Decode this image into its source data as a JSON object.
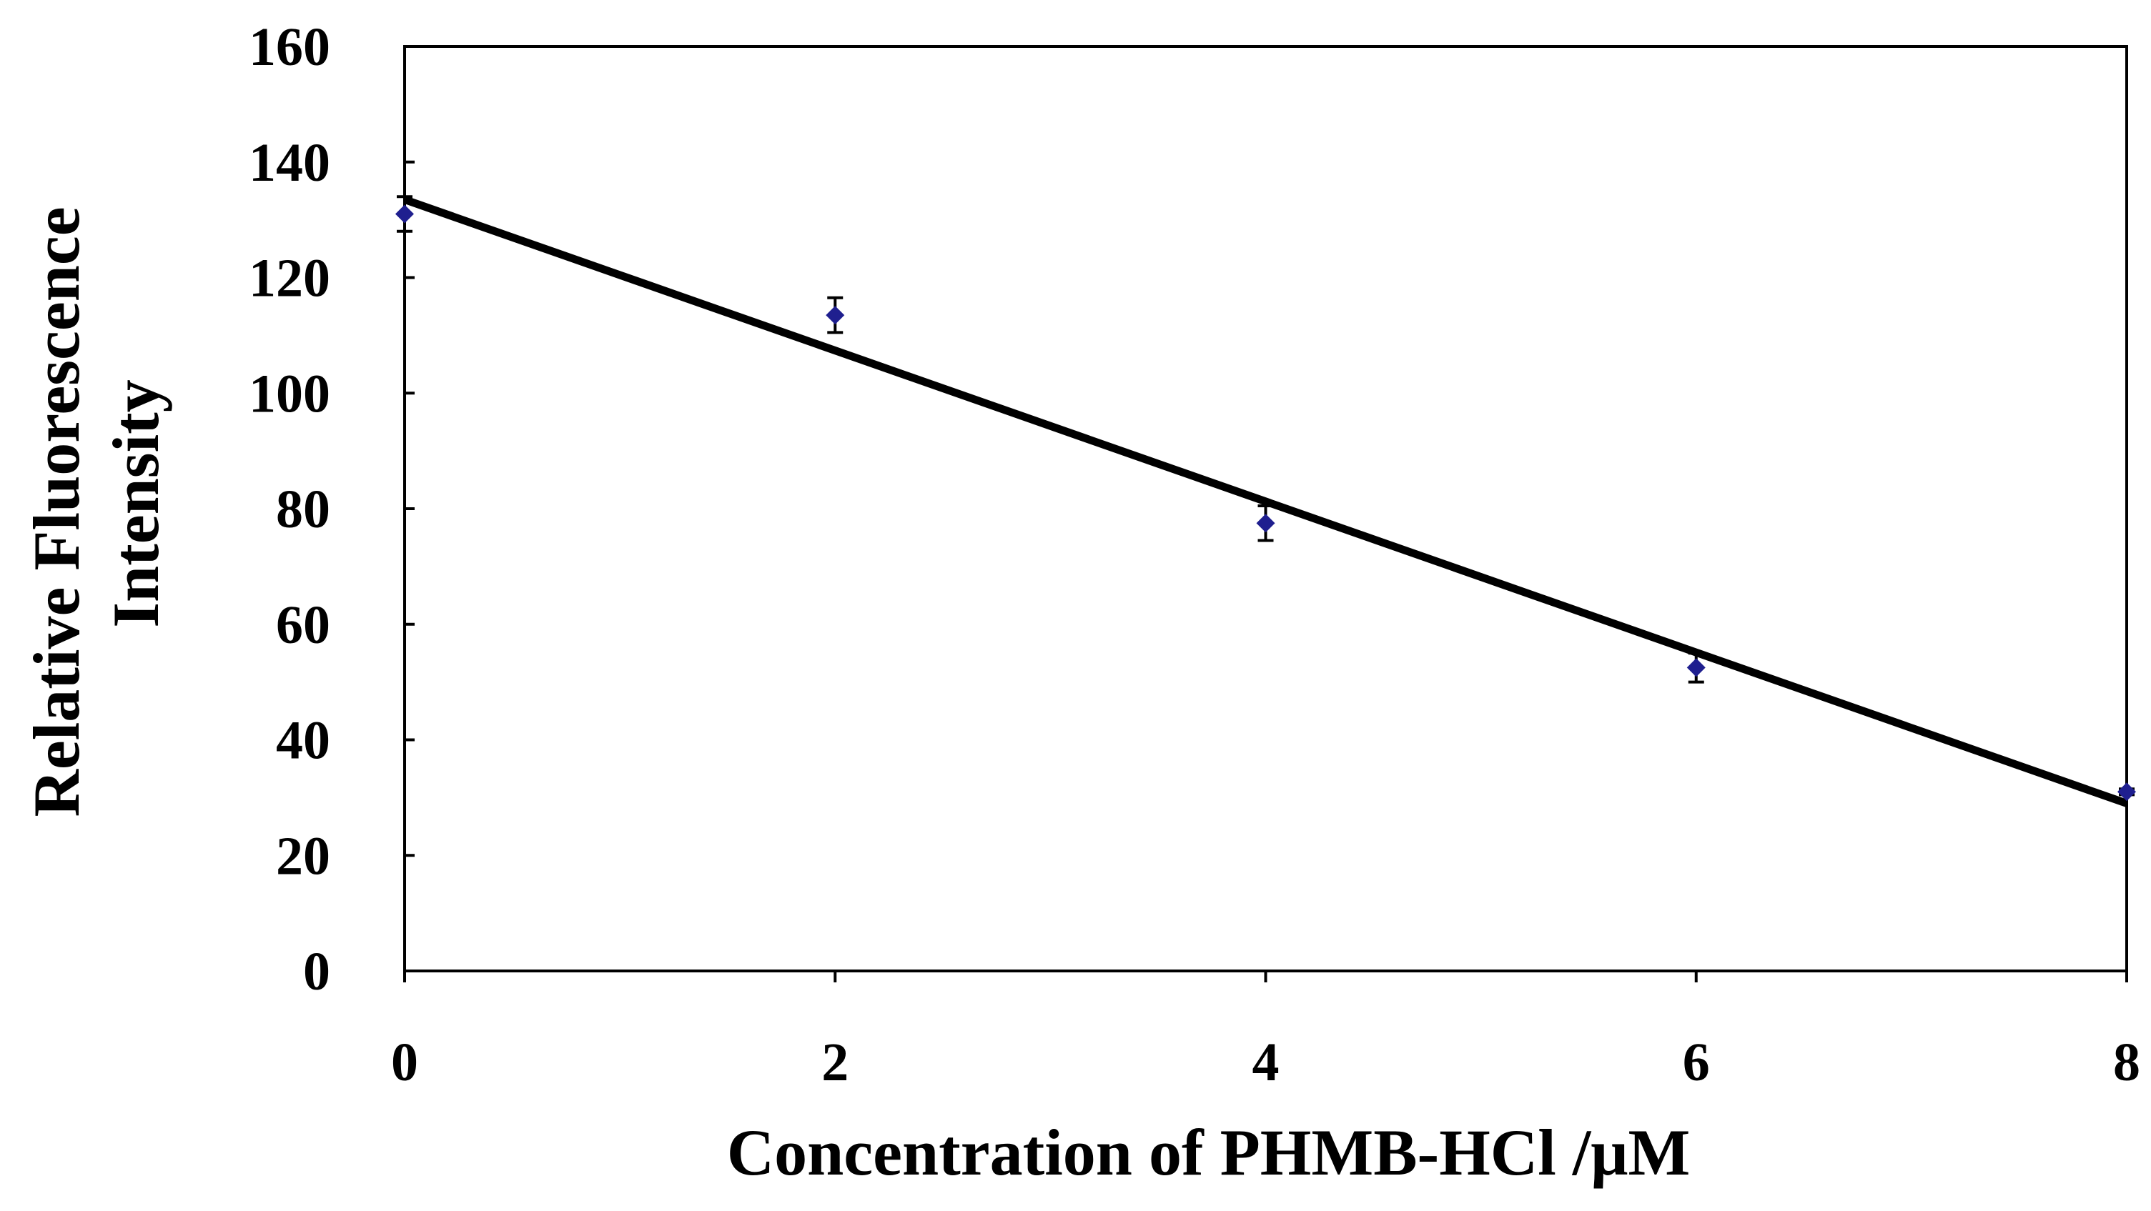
{
  "chart_data": {
    "type": "scatter",
    "title": "",
    "xlabel": "Concentration of PHMB-HCl /μM",
    "ylabel_lines": [
      "Relative Fluorescence",
      "Intensity"
    ],
    "xlim": [
      0,
      8
    ],
    "ylim": [
      0,
      160
    ],
    "x_ticks": [
      "0",
      "2",
      "4",
      "6",
      "8"
    ],
    "y_ticks": [
      "0",
      "20",
      "40",
      "60",
      "80",
      "100",
      "120",
      "140",
      "160"
    ],
    "grid": false,
    "legend": "none",
    "series": [
      {
        "marker": "diamond",
        "color": "#1f1f8f",
        "points": [
          {
            "x": 0,
            "y": 131,
            "err": 3
          },
          {
            "x": 2,
            "y": 113.5,
            "err": 3
          },
          {
            "x": 4,
            "y": 77.5,
            "err": 3
          },
          {
            "x": 6,
            "y": 52.5,
            "err": 2.5
          },
          {
            "x": 8,
            "y": 31,
            "err": 0.5
          }
        ]
      }
    ],
    "trendline": {
      "type": "linear",
      "color": "#000000",
      "x_range": [
        0,
        8
      ],
      "y_start": 133.5,
      "y_end": 29
    }
  }
}
